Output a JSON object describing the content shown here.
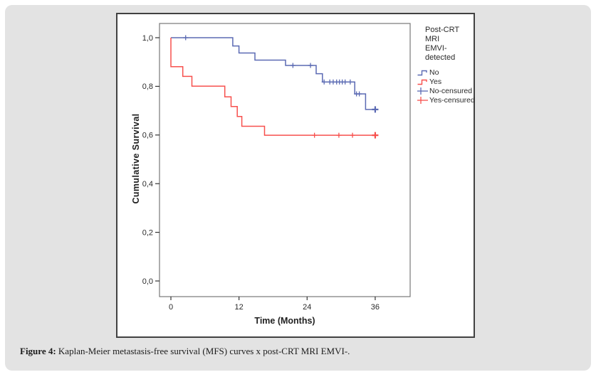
{
  "caption": {
    "label": "Figure 4:",
    "text": " Kaplan-Meier metastasis-free survival (MFS) curves x post-CRT MRI EMVI-."
  },
  "chart_data": {
    "type": "line",
    "subtype": "kaplan-meier-step",
    "xlabel": "Time (Months)",
    "ylabel": "Cumulative Survival",
    "xlim": [
      -2,
      42
    ],
    "ylim": [
      0,
      1.06
    ],
    "grid": false,
    "x_ticks": {
      "labels": [
        "0",
        "12",
        "24",
        "36"
      ],
      "values": [
        0,
        12,
        24,
        36
      ]
    },
    "y_ticks": {
      "labels": [
        "0,0",
        "0,2",
        "0,4",
        "0,6",
        "0,8",
        "1,0"
      ],
      "values": [
        0,
        0.2,
        0.4,
        0.6,
        0.8,
        1.0
      ]
    },
    "legend": {
      "position": "outside-right",
      "title_line1": "Post-CRT MRI",
      "title_line2": "EMVI-detected",
      "entries": [
        {
          "label": "No",
          "symbol": "step",
          "color": "#5b6ab3"
        },
        {
          "label": "Yes",
          "symbol": "step",
          "color": "#f7504d"
        },
        {
          "label": "No-censured",
          "symbol": "censor",
          "color": "#5b6ab3"
        },
        {
          "label": "Yes-censured",
          "symbol": "censor",
          "color": "#f7504d"
        }
      ]
    },
    "series": [
      {
        "name": "No",
        "color": "#5b6ab3",
        "steps": [
          [
            0,
            1.0
          ],
          [
            10.9,
            1.0
          ],
          [
            10.9,
            0.966
          ],
          [
            12.0,
            0.966
          ],
          [
            12.0,
            0.937
          ],
          [
            14.8,
            0.937
          ],
          [
            14.8,
            0.908
          ],
          [
            20.2,
            0.908
          ],
          [
            20.2,
            0.886
          ],
          [
            25.6,
            0.886
          ],
          [
            25.6,
            0.852
          ],
          [
            26.7,
            0.852
          ],
          [
            26.7,
            0.818
          ],
          [
            32.4,
            0.818
          ],
          [
            32.4,
            0.769
          ],
          [
            34.3,
            0.769
          ],
          [
            34.3,
            0.705
          ],
          [
            36.4,
            0.705
          ]
        ],
        "censored": [
          [
            2.6,
            1.0
          ],
          [
            21.5,
            0.886
          ],
          [
            24.6,
            0.886
          ],
          [
            27.0,
            0.818
          ],
          [
            28.0,
            0.818
          ],
          [
            28.6,
            0.818
          ],
          [
            29.2,
            0.818
          ],
          [
            29.7,
            0.818
          ],
          [
            30.2,
            0.818
          ],
          [
            30.7,
            0.818
          ],
          [
            31.6,
            0.818
          ],
          [
            32.7,
            0.769
          ],
          [
            33.2,
            0.769
          ],
          [
            36.0,
            0.705
          ]
        ]
      },
      {
        "name": "Yes",
        "color": "#f7504d",
        "steps": [
          [
            0,
            1.0
          ],
          [
            0,
            0.881
          ],
          [
            2.1,
            0.881
          ],
          [
            2.1,
            0.841
          ],
          [
            3.7,
            0.841
          ],
          [
            3.7,
            0.801
          ],
          [
            9.5,
            0.801
          ],
          [
            9.5,
            0.757
          ],
          [
            10.6,
            0.757
          ],
          [
            10.6,
            0.717
          ],
          [
            11.7,
            0.717
          ],
          [
            11.7,
            0.676
          ],
          [
            12.5,
            0.676
          ],
          [
            12.5,
            0.636
          ],
          [
            16.5,
            0.636
          ],
          [
            16.5,
            0.599
          ],
          [
            36.5,
            0.599
          ]
        ],
        "censored": [
          [
            25.3,
            0.599
          ],
          [
            29.6,
            0.599
          ],
          [
            32.0,
            0.599
          ],
          [
            36.0,
            0.599
          ]
        ]
      }
    ]
  }
}
